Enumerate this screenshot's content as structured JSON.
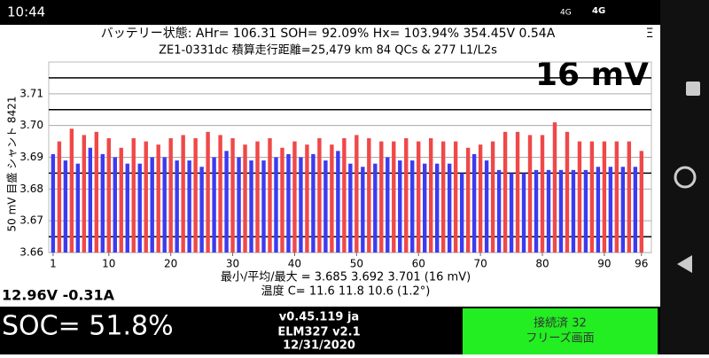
{
  "status_bar": {
    "time": "10:44",
    "network_1": "4G",
    "network_2": "4G"
  },
  "header": {
    "line_1": "バッテリー状態:  AHr= 106.31  SOH= 92.09%   Hx= 103.94%   354.45V 0.54A",
    "line_2": "ZE1-0331dc 積算走行距離=25,479 km  84 QCs & 277 L1/L2s",
    "menu": "Ξ"
  },
  "chart_data": {
    "type": "bar",
    "big_label": "16 mV",
    "y_label": "50 mV 目盛 シャント 8421",
    "x": [
      1,
      2,
      3,
      4,
      5,
      6,
      7,
      8,
      9,
      10,
      11,
      12,
      13,
      14,
      15,
      16,
      17,
      18,
      19,
      20,
      21,
      22,
      23,
      24,
      25,
      26,
      27,
      28,
      29,
      30,
      31,
      32,
      33,
      34,
      35,
      36,
      37,
      38,
      39,
      40,
      41,
      42,
      43,
      44,
      45,
      46,
      47,
      48,
      49,
      50,
      51,
      52,
      53,
      54,
      55,
      56,
      57,
      58,
      59,
      60,
      61,
      62,
      63,
      64,
      65,
      66,
      67,
      68,
      69,
      70,
      71,
      72,
      73,
      74,
      75,
      76,
      77,
      78,
      79,
      80,
      81,
      82,
      83,
      84,
      85,
      86,
      87,
      88,
      89,
      90,
      91,
      92,
      93,
      94,
      95,
      96
    ],
    "values": [
      3.691,
      3.695,
      3.689,
      3.699,
      3.688,
      3.697,
      3.693,
      3.698,
      3.691,
      3.696,
      3.69,
      3.693,
      3.688,
      3.696,
      3.688,
      3.695,
      3.69,
      3.694,
      3.69,
      3.696,
      3.689,
      3.697,
      3.689,
      3.696,
      3.687,
      3.698,
      3.69,
      3.697,
      3.692,
      3.696,
      3.69,
      3.694,
      3.689,
      3.695,
      3.689,
      3.696,
      3.69,
      3.693,
      3.691,
      3.695,
      3.69,
      3.694,
      3.691,
      3.696,
      3.689,
      3.694,
      3.692,
      3.696,
      3.688,
      3.697,
      3.687,
      3.696,
      3.688,
      3.695,
      3.69,
      3.695,
      3.689,
      3.696,
      3.689,
      3.695,
      3.688,
      3.696,
      3.688,
      3.695,
      3.688,
      3.695,
      3.685,
      3.693,
      3.691,
      3.694,
      3.689,
      3.695,
      3.686,
      3.698,
      3.685,
      3.698,
      3.685,
      3.697,
      3.686,
      3.697,
      3.686,
      3.701,
      3.686,
      3.698,
      3.686,
      3.695,
      3.686,
      3.695,
      3.687,
      3.695,
      3.687,
      3.695,
      3.687,
      3.695,
      3.687,
      3.692
    ],
    "colors": [
      "#3b3bef",
      "#f04848"
    ],
    "xlim": [
      0.3,
      97.6
    ],
    "xticks": [
      1,
      10,
      20,
      30,
      40,
      50,
      60,
      70,
      80,
      90,
      96
    ],
    "ylim": [
      3.66,
      3.72
    ],
    "yticks": [
      3.66,
      3.67,
      3.68,
      3.69,
      {
        "value": 3.7,
        "label": "3.70"
      },
      3.71
    ],
    "guide_lines": [
      3.665,
      3.685,
      3.705,
      3.715
    ],
    "grid": true,
    "stats_line": "最小/平均/最大 = 3.685 3.692 3.701  (16 mV)",
    "temp_line": "温度 C= 11.6  11.8  10.6  (1.2°)"
  },
  "footer": {
    "pack": "12.96V -0.31A",
    "soc": "SOC= 51.8%",
    "version": "v0.45.119 ja",
    "adapter": "ELM327 v2.1",
    "date": "12/31/2020",
    "connection": "接続済 32",
    "freeze": "フリーズ画面"
  }
}
